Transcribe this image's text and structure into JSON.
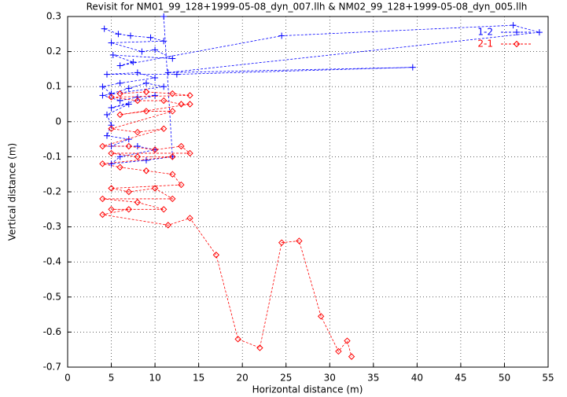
{
  "chart_data": {
    "type": "line",
    "title": "Revisit for NM01_99_128+1999-05-08_dyn_007.llh & NM02_99_128+1999-05-08_dyn_005.llh",
    "x_label": "Horizontal distance (m)",
    "y_label": "Vertical distance (m)",
    "xlim": [
      0,
      55
    ],
    "xticks": [
      0,
      5,
      10,
      15,
      20,
      25,
      30,
      35,
      40,
      45,
      50,
      55
    ],
    "ylim": [
      -0.7,
      0.3
    ],
    "yticks": [
      0.3,
      0.2,
      0.1,
      0,
      -0.1,
      -0.2,
      -0.3,
      -0.4,
      -0.5,
      -0.6,
      -0.7
    ],
    "grid": true,
    "legend": "top right",
    "series": [
      {
        "name": "1-2",
        "color": "#0000ff",
        "marker": "plus",
        "x": [
          4.2,
          5.8,
          7.2,
          9.5,
          11,
          5,
          8.5,
          10,
          12,
          5.2,
          7.5,
          6,
          24.5,
          51,
          54,
          11.5,
          39.5,
          12.5,
          4.5,
          8,
          10,
          6,
          4,
          5,
          7,
          9,
          11,
          4,
          6,
          8,
          10,
          5,
          7,
          4.5,
          5,
          4.5,
          7,
          5,
          8,
          10,
          6,
          5,
          9,
          12,
          11
        ],
        "values": [
          0.265,
          0.25,
          0.245,
          0.24,
          0.23,
          0.225,
          0.2,
          0.205,
          0.18,
          0.19,
          0.17,
          0.16,
          0.245,
          0.275,
          0.255,
          0.14,
          0.155,
          0.135,
          0.135,
          0.14,
          0.125,
          0.11,
          0.1,
          0.08,
          0.095,
          0.11,
          0.1,
          0.075,
          0.06,
          0.07,
          0.075,
          0.04,
          0.05,
          0.02,
          -0.01,
          -0.04,
          -0.05,
          -0.07,
          -0.07,
          -0.08,
          -0.1,
          -0.12,
          -0.11,
          -0.1,
          0.3
        ]
      },
      {
        "name": "2-1",
        "color": "#ff0000",
        "marker": "diamond",
        "x": [
          6,
          9,
          12,
          14,
          5,
          8,
          11,
          13,
          14,
          6,
          9,
          12,
          5,
          8,
          11,
          4,
          7,
          10,
          13,
          14,
          5,
          8,
          12,
          4,
          6,
          9,
          12,
          13,
          5,
          7,
          10,
          12,
          4,
          8,
          11,
          5,
          7,
          4,
          11.5,
          14,
          17,
          19.5,
          22,
          24.5,
          26.5,
          29,
          31,
          32,
          32.5
        ],
        "values": [
          0.08,
          0.085,
          0.08,
          0.075,
          0.07,
          0.06,
          0.06,
          0.05,
          0.05,
          0.02,
          0.03,
          0.03,
          -0.02,
          -0.03,
          -0.02,
          -0.07,
          -0.07,
          -0.08,
          -0.07,
          -0.09,
          -0.09,
          -0.1,
          -0.1,
          -0.12,
          -0.13,
          -0.14,
          -0.15,
          -0.18,
          -0.19,
          -0.2,
          -0.19,
          -0.22,
          -0.22,
          -0.23,
          -0.25,
          -0.25,
          -0.25,
          -0.265,
          -0.295,
          -0.275,
          -0.38,
          -0.62,
          -0.645,
          -0.345,
          -0.34,
          -0.555,
          -0.655,
          -0.625,
          -0.67
        ]
      }
    ]
  }
}
